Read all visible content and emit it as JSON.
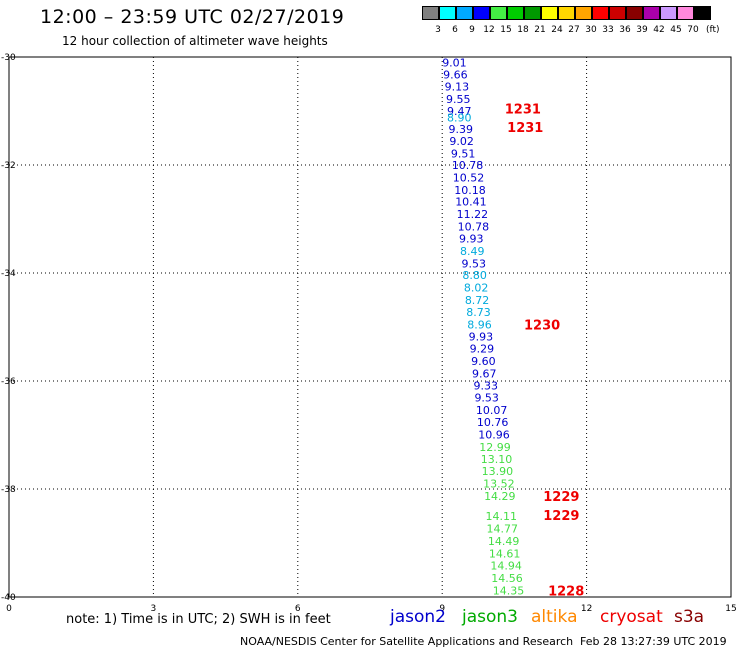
{
  "header": {
    "title": "12:00 – 23:59 UTC 02/27/2019",
    "subtitle": "12 hour collection of altimeter wave heights"
  },
  "colorbar": {
    "unit": "(ft)",
    "bins": [
      {
        "label": "3",
        "color": "#808080"
      },
      {
        "label": "6",
        "color": "#00ffff"
      },
      {
        "label": "9",
        "color": "#00aaff"
      },
      {
        "label": "12",
        "color": "#0000ff"
      },
      {
        "label": "15",
        "color": "#44ee44"
      },
      {
        "label": "18",
        "color": "#00cc00"
      },
      {
        "label": "21",
        "color": "#009900"
      },
      {
        "label": "24",
        "color": "#ffff00"
      },
      {
        "label": "27",
        "color": "#ffd700"
      },
      {
        "label": "30",
        "color": "#ffa500"
      },
      {
        "label": "33",
        "color": "#ff0000"
      },
      {
        "label": "36",
        "color": "#cc0000"
      },
      {
        "label": "39",
        "color": "#880000"
      },
      {
        "label": "42",
        "color": "#aa00aa"
      },
      {
        "label": "45",
        "color": "#cc99ff"
      },
      {
        "label": "70",
        "color": "#ff88dd"
      },
      {
        "label": "",
        "color": "#000000"
      }
    ]
  },
  "chart_data": {
    "type": "scatter",
    "x_tick_labels": [
      "0",
      "3",
      "6",
      "9",
      "12",
      "15"
    ],
    "y_tick_labels": [
      "-30",
      "-32",
      "-34",
      "-36",
      "-38",
      "-40"
    ],
    "xlim": [
      0,
      15
    ],
    "ylim": [
      -40,
      -30
    ],
    "grid": true,
    "colors": {
      "jason2": "#0000cc",
      "jason2_light": "#00aadd",
      "jason3": "#44dd44",
      "cryosat": "#ee0000"
    },
    "wave_heights": [
      {
        "x": 9.0,
        "y": -30.1,
        "label": "9.01",
        "sat": "jason2"
      },
      {
        "x": 9.02,
        "y": -30.32,
        "label": "9.66",
        "sat": "jason2"
      },
      {
        "x": 9.05,
        "y": -30.55,
        "label": "9.13",
        "sat": "jason2"
      },
      {
        "x": 9.08,
        "y": -30.78,
        "label": "9.55",
        "sat": "jason2"
      },
      {
        "x": 9.1,
        "y": -31.0,
        "label": "9.47",
        "sat": "jason2"
      },
      {
        "x": 9.1,
        "y": -31.12,
        "label": "8.90",
        "sat": "jason2_light"
      },
      {
        "x": 9.13,
        "y": -31.33,
        "label": "9.39",
        "sat": "jason2"
      },
      {
        "x": 9.15,
        "y": -31.56,
        "label": "9.02",
        "sat": "jason2"
      },
      {
        "x": 9.18,
        "y": -31.79,
        "label": "9.51",
        "sat": "jason2"
      },
      {
        "x": 9.2,
        "y": -32.0,
        "label": "10.78",
        "sat": "jason2"
      },
      {
        "x": 9.22,
        "y": -32.23,
        "label": "10.52",
        "sat": "jason2"
      },
      {
        "x": 9.25,
        "y": -32.46,
        "label": "10.18",
        "sat": "jason2"
      },
      {
        "x": 9.27,
        "y": -32.68,
        "label": "10.41",
        "sat": "jason2"
      },
      {
        "x": 9.3,
        "y": -32.91,
        "label": "11.22",
        "sat": "jason2"
      },
      {
        "x": 9.32,
        "y": -33.14,
        "label": "10.78",
        "sat": "jason2"
      },
      {
        "x": 9.35,
        "y": -33.36,
        "label": "9.93",
        "sat": "jason2"
      },
      {
        "x": 9.37,
        "y": -33.59,
        "label": "8.49",
        "sat": "jason2_light"
      },
      {
        "x": 9.4,
        "y": -33.82,
        "label": "9.53",
        "sat": "jason2"
      },
      {
        "x": 9.42,
        "y": -34.04,
        "label": "8.80",
        "sat": "jason2_light"
      },
      {
        "x": 9.45,
        "y": -34.27,
        "label": "8.02",
        "sat": "jason2_light"
      },
      {
        "x": 9.47,
        "y": -34.5,
        "label": "8.72",
        "sat": "jason2_light"
      },
      {
        "x": 9.5,
        "y": -34.72,
        "label": "8.73",
        "sat": "jason2_light"
      },
      {
        "x": 9.52,
        "y": -34.95,
        "label": "8.96",
        "sat": "jason2_light"
      },
      {
        "x": 9.55,
        "y": -35.18,
        "label": "9.93",
        "sat": "jason2"
      },
      {
        "x": 9.57,
        "y": -35.4,
        "label": "9.29",
        "sat": "jason2"
      },
      {
        "x": 9.6,
        "y": -35.63,
        "label": "9.60",
        "sat": "jason2"
      },
      {
        "x": 9.62,
        "y": -35.86,
        "label": "9.67",
        "sat": "jason2"
      },
      {
        "x": 9.65,
        "y": -36.08,
        "label": "9.33",
        "sat": "jason2"
      },
      {
        "x": 9.67,
        "y": -36.31,
        "label": "9.53",
        "sat": "jason2"
      },
      {
        "x": 9.7,
        "y": -36.54,
        "label": "10.07",
        "sat": "jason2"
      },
      {
        "x": 9.72,
        "y": -36.76,
        "label": "10.76",
        "sat": "jason2"
      },
      {
        "x": 9.75,
        "y": -36.99,
        "label": "10.96",
        "sat": "jason2"
      },
      {
        "x": 9.77,
        "y": -37.22,
        "label": "12.99",
        "sat": "jason3"
      },
      {
        "x": 9.8,
        "y": -37.44,
        "label": "13.10",
        "sat": "jason3"
      },
      {
        "x": 9.82,
        "y": -37.67,
        "label": "13.90",
        "sat": "jason3"
      },
      {
        "x": 9.85,
        "y": -37.9,
        "label": "13.52",
        "sat": "jason3"
      },
      {
        "x": 9.87,
        "y": -38.13,
        "label": "14.29",
        "sat": "jason3"
      },
      {
        "x": 9.9,
        "y": -38.5,
        "label": "14.11",
        "sat": "jason3"
      },
      {
        "x": 9.92,
        "y": -38.73,
        "label": "14.77",
        "sat": "jason3"
      },
      {
        "x": 9.95,
        "y": -38.96,
        "label": "14.49",
        "sat": "jason3"
      },
      {
        "x": 9.97,
        "y": -39.19,
        "label": "14.61",
        "sat": "jason3"
      },
      {
        "x": 10.0,
        "y": -39.42,
        "label": "14.94",
        "sat": "jason3"
      },
      {
        "x": 10.02,
        "y": -39.65,
        "label": "14.56",
        "sat": "jason3"
      },
      {
        "x": 10.05,
        "y": -39.88,
        "label": "14.35",
        "sat": "jason3"
      }
    ],
    "time_stamps": [
      {
        "x": 10.3,
        "y": -30.95,
        "label": "1231"
      },
      {
        "x": 10.35,
        "y": -31.3,
        "label": "1231"
      },
      {
        "x": 10.7,
        "y": -34.95,
        "label": "1230"
      },
      {
        "x": 11.1,
        "y": -38.13,
        "label": "1229"
      },
      {
        "x": 11.1,
        "y": -38.48,
        "label": "1229"
      },
      {
        "x": 11.2,
        "y": -39.88,
        "label": "1228"
      }
    ]
  },
  "footer": {
    "note": "note:  1) Time is in UTC;  2) SWH is in feet",
    "legend": [
      {
        "label": "jason2",
        "color": "#0000cc"
      },
      {
        "label": "jason3",
        "color": "#00aa00"
      },
      {
        "label": "altika",
        "color": "#ff8800"
      },
      {
        "label": "cryosat",
        "color": "#ee0000"
      },
      {
        "label": "s3a",
        "color": "#880000"
      }
    ],
    "credit": "NOAA/NESDIS Center for Satellite Applications and Research",
    "generated": "Feb 28 13:27:39 UTC 2019"
  }
}
